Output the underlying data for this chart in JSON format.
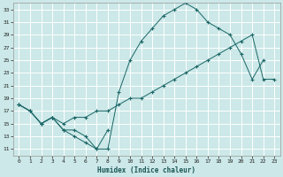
{
  "title": "",
  "xlabel": "Humidex (Indice chaleur)",
  "bg_color": "#cce8e8",
  "grid_color": "#ffffff",
  "line_color": "#1a6666",
  "xlim": [
    -0.5,
    23.5
  ],
  "ylim": [
    10,
    34
  ],
  "yticks": [
    11,
    13,
    15,
    17,
    19,
    21,
    23,
    25,
    27,
    29,
    31,
    33
  ],
  "xticks": [
    0,
    1,
    2,
    3,
    4,
    5,
    6,
    7,
    8,
    9,
    10,
    11,
    12,
    13,
    14,
    15,
    16,
    17,
    18,
    19,
    20,
    21,
    22,
    23
  ],
  "line1_x": [
    0,
    1,
    2,
    3,
    4,
    5,
    6,
    7,
    8,
    9,
    10,
    11,
    12,
    13,
    14,
    15,
    16,
    17,
    18,
    19,
    20,
    21,
    22
  ],
  "line1_y": [
    18,
    17,
    15,
    16,
    14,
    13,
    12,
    11,
    11,
    20,
    25,
    28,
    30,
    32,
    33,
    34,
    33,
    31,
    30,
    29,
    26,
    22,
    25
  ],
  "line2_x": [
    0,
    1,
    2,
    3,
    4,
    5,
    6,
    7,
    8
  ],
  "line2_y": [
    18,
    17,
    15,
    16,
    14,
    14,
    13,
    11,
    14
  ],
  "line3_x": [
    0,
    1,
    2,
    3,
    4,
    5,
    6,
    7,
    8,
    9,
    10,
    11,
    12,
    13,
    14,
    15,
    16,
    17,
    18,
    19,
    20,
    21,
    22,
    23
  ],
  "line3_y": [
    18,
    17,
    15,
    16,
    15,
    16,
    16,
    17,
    17,
    18,
    19,
    19,
    20,
    21,
    22,
    23,
    24,
    25,
    26,
    27,
    28,
    29,
    22,
    22
  ]
}
